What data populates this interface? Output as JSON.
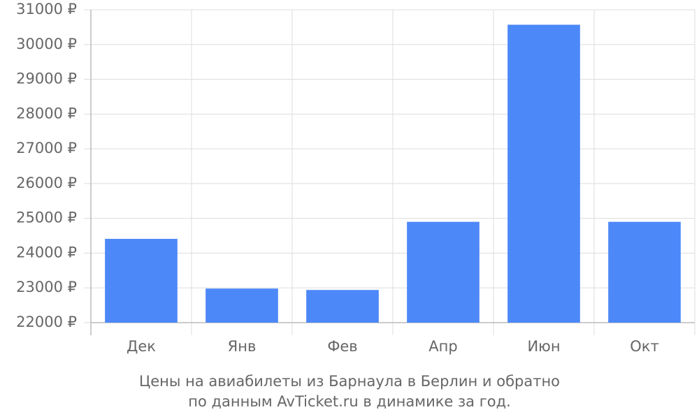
{
  "chart_data": {
    "type": "bar",
    "title": "Цены на авиабилеты из Барнаула в Берлин и обратно",
    "subtitle": "по данным AvTicket.ru в динамике за год.",
    "categories": [
      "Дек",
      "Янв",
      "Фев",
      "Апр",
      "Июн",
      "Окт"
    ],
    "values": [
      24410,
      22980,
      22940,
      24900,
      30570,
      24900
    ],
    "color": "#4d88f8",
    "ylim": [
      22000,
      31000
    ],
    "yticks": [
      {
        "value": 22000,
        "label": "22000 ₽"
      },
      {
        "value": 23000,
        "label": "23000 ₽"
      },
      {
        "value": 24000,
        "label": "24000 ₽"
      },
      {
        "value": 25000,
        "label": "25000 ₽"
      },
      {
        "value": 26000,
        "label": "26000 ₽"
      },
      {
        "value": 27000,
        "label": "27000 ₽"
      },
      {
        "value": 28000,
        "label": "28000 ₽"
      },
      {
        "value": 29000,
        "label": "29000 ₽"
      },
      {
        "value": 30000,
        "label": "30000 ₽"
      },
      {
        "value": 31000,
        "label": "31000 ₽"
      }
    ],
    "grid": true
  }
}
